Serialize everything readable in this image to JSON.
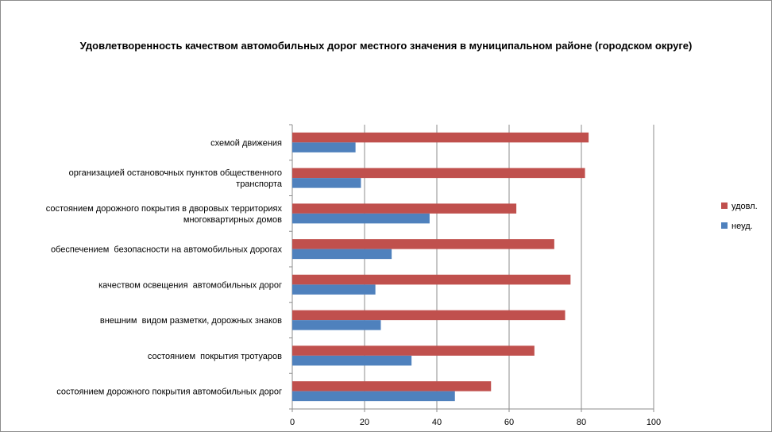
{
  "chart_data": {
    "type": "bar",
    "orientation": "horizontal",
    "title": "Удовлетворенность качеством автомобильных дорог местного значения в муниципальном районе (городском округе)",
    "xlabel": "",
    "ylabel": "",
    "xlim": [
      0,
      100
    ],
    "xticks": [
      0,
      20,
      40,
      60,
      80,
      100
    ],
    "grid": true,
    "legend_position": "right",
    "categories": [
      [
        "схемой движения"
      ],
      [
        "организацией остановочных пунктов общественного",
        "транспорта"
      ],
      [
        "состоянием дорожного покрытия в дворовых территориях",
        "многоквартирных домов"
      ],
      [
        "обеспечением  безопасности на автомобильных дорогах"
      ],
      [
        "качеством освещения  автомобильных дорог"
      ],
      [
        "внешним  видом разметки, дорожных знаков"
      ],
      [
        "состоянием  покрытия тротуаров"
      ],
      [
        "состоянием дорожного покрытия автомобильных дорог"
      ]
    ],
    "series": [
      {
        "name": "удовл.",
        "color": "#C0504D",
        "values": [
          82,
          81,
          62,
          72.5,
          77,
          75.5,
          67,
          55
        ]
      },
      {
        "name": "неуд.",
        "color": "#4F81BD",
        "values": [
          17.5,
          19,
          38,
          27.5,
          23,
          24.5,
          33,
          45
        ]
      }
    ]
  }
}
